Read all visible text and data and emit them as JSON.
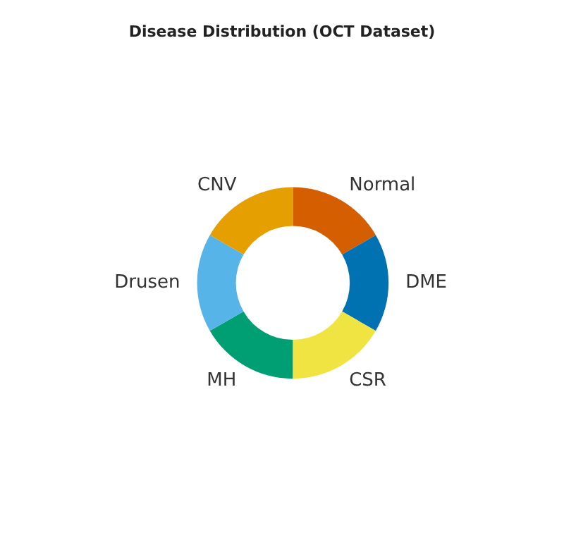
{
  "chart_data": {
    "type": "donut",
    "title": "Disease Distribution (OCT Dataset)",
    "categories": [
      "Normal",
      "DME",
      "CSR",
      "MH",
      "Drusen",
      "CNV"
    ],
    "values": [
      16.67,
      16.67,
      16.67,
      16.67,
      16.66,
      16.66
    ],
    "colors": [
      "#d55e00",
      "#0072b2",
      "#f0e442",
      "#009e73",
      "#56b4e9",
      "#e69f00"
    ]
  }
}
